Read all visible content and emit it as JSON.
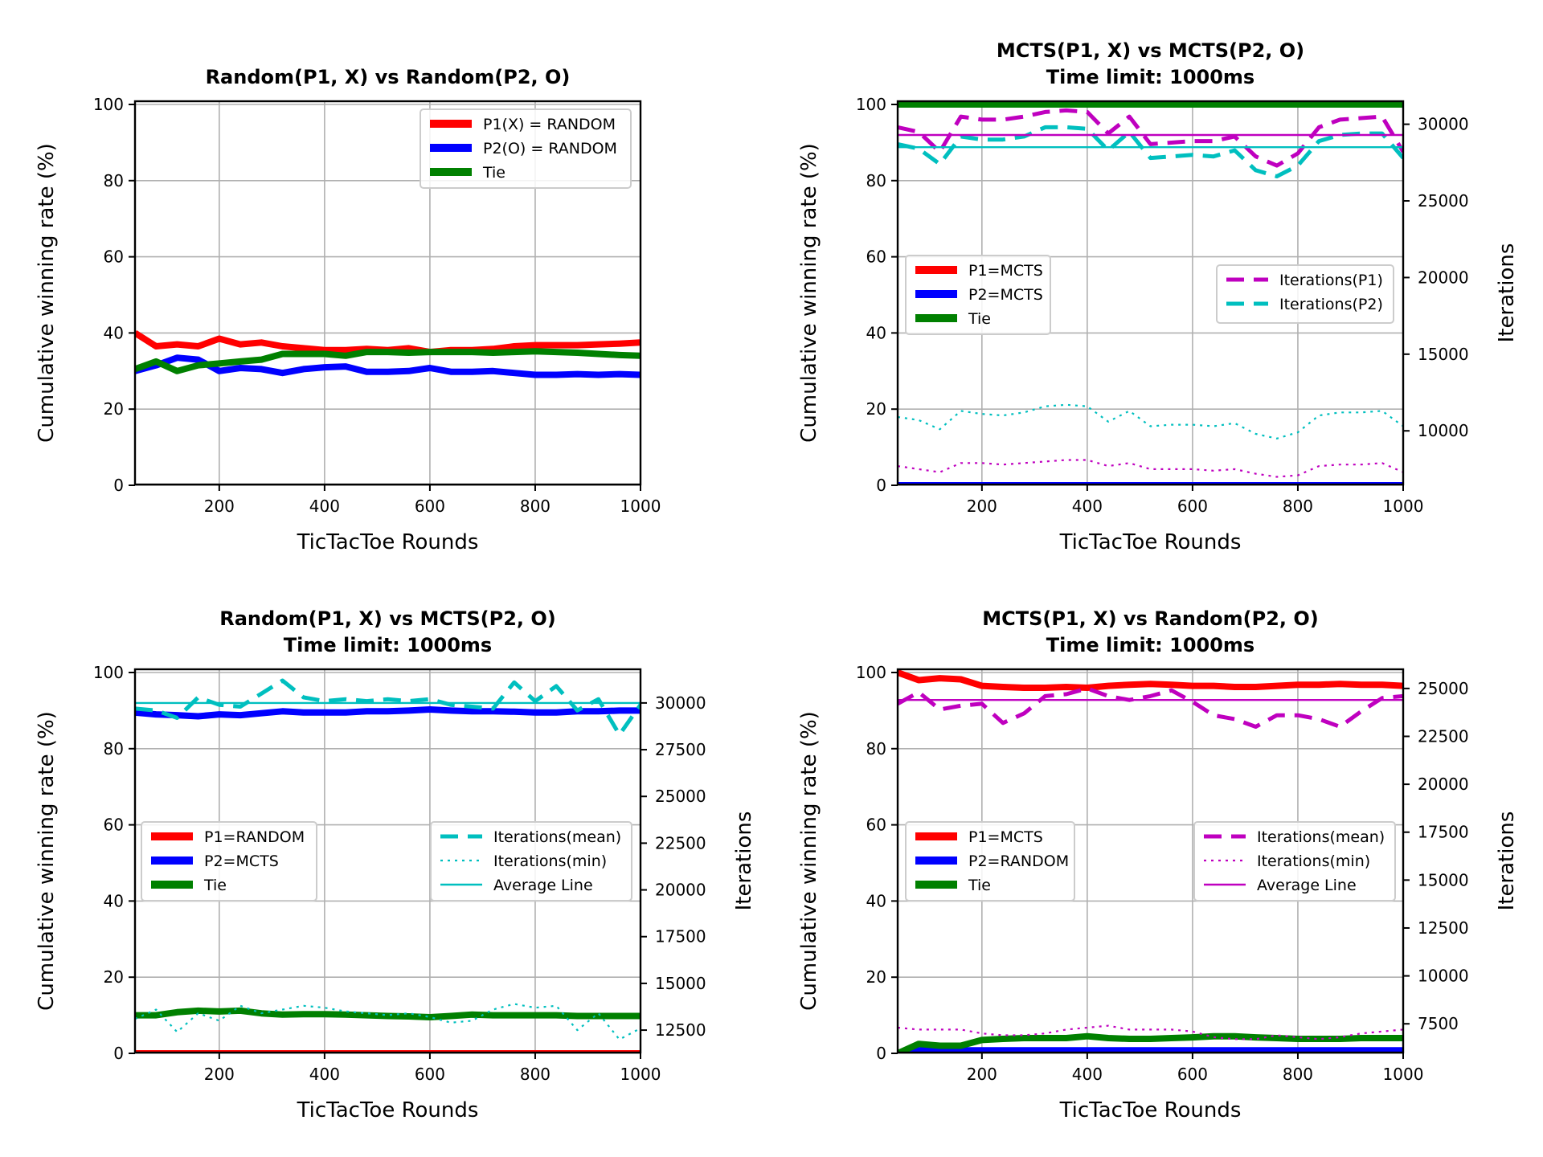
{
  "chart_data": [
    {
      "type": "line",
      "title": [
        "Random(P1, X) vs Random(P2, O)"
      ],
      "xlabel": "TicTacToe Rounds",
      "ylabel": "Cumulative winning rate (%)",
      "xlim": [
        40,
        1000
      ],
      "ylim": [
        0,
        100
      ],
      "xticks": [
        200,
        400,
        600,
        800,
        1000
      ],
      "yticks": [
        0,
        20,
        40,
        60,
        80,
        100
      ],
      "x": [
        40,
        80,
        120,
        160,
        200,
        240,
        280,
        320,
        360,
        400,
        440,
        480,
        520,
        560,
        600,
        640,
        680,
        720,
        760,
        800,
        840,
        880,
        920,
        960,
        1000
      ],
      "series": [
        {
          "name": "P1(X) = RANDOM",
          "color": "#ff0000",
          "values": [
            40.0,
            36.5,
            37.0,
            36.5,
            38.5,
            37.0,
            37.5,
            36.5,
            36.0,
            35.5,
            35.5,
            35.8,
            35.5,
            36.0,
            35.0,
            35.5,
            35.5,
            35.8,
            36.5,
            36.8,
            36.8,
            36.8,
            37.0,
            37.2,
            37.5
          ]
        },
        {
          "name": "P2(O) = RANDOM",
          "color": "#0000ff",
          "values": [
            30.0,
            31.5,
            33.5,
            33.0,
            30.0,
            30.8,
            30.5,
            29.5,
            30.5,
            31.0,
            31.2,
            29.8,
            29.8,
            30.0,
            30.8,
            29.8,
            29.8,
            30.0,
            29.5,
            29.0,
            29.0,
            29.2,
            29.0,
            29.2,
            29.0
          ]
        },
        {
          "name": "Tie",
          "color": "#008000",
          "values": [
            30.5,
            32.5,
            30.0,
            31.5,
            32.0,
            32.5,
            33.0,
            34.5,
            34.5,
            34.5,
            34.0,
            35.0,
            35.0,
            34.8,
            35.0,
            35.0,
            35.0,
            34.8,
            35.0,
            35.2,
            35.0,
            34.8,
            34.5,
            34.2,
            34.0
          ]
        }
      ],
      "legend": {
        "position": "upper-right",
        "entries": [
          "P1(X) = RANDOM",
          "P2(O) = RANDOM",
          "Tie"
        ]
      }
    },
    {
      "type": "line",
      "title": [
        "MCTS(P1, X) vs MCTS(P2, O)",
        "Time limit: 1000ms"
      ],
      "xlabel": "TicTacToe Rounds",
      "ylabel": "Cumulative winning rate (%)",
      "y2label": "Iterations",
      "xlim": [
        40,
        1000
      ],
      "ylim": [
        0,
        100
      ],
      "y2lim": [
        6500,
        31500
      ],
      "xticks": [
        200,
        400,
        600,
        800,
        1000
      ],
      "yticks": [
        0,
        20,
        40,
        60,
        80,
        100
      ],
      "y2ticks": [
        10000,
        15000,
        20000,
        25000,
        30000
      ],
      "x": [
        40,
        80,
        120,
        160,
        200,
        240,
        280,
        320,
        360,
        400,
        440,
        480,
        520,
        560,
        600,
        640,
        680,
        720,
        760,
        800,
        840,
        880,
        920,
        960,
        1000
      ],
      "series": [
        {
          "name": "P1=MCTS",
          "color": "#ff0000",
          "values": [
            0,
            0,
            0,
            0,
            0,
            0,
            0,
            0,
            0,
            0,
            0,
            0,
            0,
            0,
            0,
            0,
            0,
            0,
            0,
            0,
            0,
            0,
            0,
            0,
            0
          ]
        },
        {
          "name": "P2=MCTS",
          "color": "#0000ff",
          "values": [
            0,
            0,
            0,
            0,
            0,
            0,
            0,
            0,
            0,
            0,
            0,
            0,
            0,
            0,
            0,
            0,
            0,
            0,
            0,
            0,
            0,
            0,
            0,
            0,
            0
          ]
        },
        {
          "name": "Tie",
          "color": "#008000",
          "values": [
            100,
            100,
            100,
            100,
            100,
            100,
            100,
            100,
            100,
            100,
            100,
            100,
            100,
            100,
            100,
            100,
            100,
            100,
            100,
            100,
            100,
            100,
            100,
            100,
            100
          ]
        }
      ],
      "secondary_series": [
        {
          "name": "Iterations(P1)",
          "color": "#bf00bf",
          "style": "dashed",
          "values": [
            29800,
            29500,
            28200,
            30500,
            30300,
            30300,
            30500,
            30800,
            30900,
            30800,
            29400,
            30500,
            28700,
            28800,
            28900,
            28900,
            29200,
            27900,
            27300,
            28100,
            29800,
            30300,
            30400,
            30500,
            28200
          ]
        },
        {
          "name": "Iterations(P2)",
          "color": "#00bfbf",
          "style": "dashed",
          "values": [
            28700,
            28400,
            27400,
            29200,
            29000,
            29000,
            29200,
            29800,
            29800,
            29700,
            28300,
            29500,
            27800,
            27900,
            28000,
            27900,
            28300,
            27000,
            26600,
            27300,
            28900,
            29300,
            29400,
            29400,
            27800
          ]
        },
        {
          "name": "Iterations(P1) average",
          "color": "#bf00bf",
          "style": "solid-thin",
          "values": [
            29300,
            29300,
            29300,
            29300,
            29300,
            29300,
            29300,
            29300,
            29300,
            29300,
            29300,
            29300,
            29300,
            29300,
            29300,
            29300,
            29300,
            29300,
            29300,
            29300,
            29300,
            29300,
            29300,
            29300,
            29300
          ]
        },
        {
          "name": "Iterations(P2) average",
          "color": "#00bfbf",
          "style": "solid-thin",
          "values": [
            28500,
            28500,
            28500,
            28500,
            28500,
            28500,
            28500,
            28500,
            28500,
            28500,
            28500,
            28500,
            28500,
            28500,
            28500,
            28500,
            28500,
            28500,
            28500,
            28500,
            28500,
            28500,
            28500,
            28500,
            28500
          ]
        },
        {
          "name": "Iterations(P2) min",
          "color": "#00bfbf",
          "style": "dotted",
          "values": [
            10900,
            10700,
            10100,
            11300,
            11100,
            11000,
            11200,
            11600,
            11700,
            11600,
            10600,
            11300,
            10300,
            10400,
            10400,
            10300,
            10500,
            9800,
            9500,
            9900,
            11000,
            11200,
            11200,
            11300,
            10300
          ]
        },
        {
          "name": "Iterations(P1) min",
          "color": "#bf00bf",
          "style": "dotted",
          "values": [
            7700,
            7500,
            7300,
            7900,
            7900,
            7800,
            7900,
            8000,
            8100,
            8100,
            7700,
            7900,
            7500,
            7500,
            7500,
            7400,
            7500,
            7200,
            7000,
            7100,
            7700,
            7800,
            7800,
            7900,
            7300
          ]
        }
      ],
      "legend": {
        "position": "center-left",
        "entries": [
          "P1=MCTS",
          "P2=MCTS",
          "Tie"
        ]
      },
      "legend2": {
        "position": "center-right",
        "entries": [
          "Iterations(P1)",
          "Iterations(P2)"
        ]
      }
    },
    {
      "type": "line",
      "title": [
        "Random(P1, X) vs MCTS(P2, O)",
        "Time limit: 1000ms"
      ],
      "xlabel": "TicTacToe Rounds",
      "ylabel": "Cumulative winning rate (%)",
      "y2label": "Iterations",
      "xlim": [
        40,
        1000
      ],
      "ylim": [
        0,
        100
      ],
      "y2lim": [
        11300,
        31800
      ],
      "xticks": [
        200,
        400,
        600,
        800,
        1000
      ],
      "yticks": [
        0,
        20,
        40,
        60,
        80,
        100
      ],
      "y2ticks": [
        12500,
        15000,
        17500,
        20000,
        22500,
        25000,
        27500,
        30000
      ],
      "x": [
        40,
        80,
        120,
        160,
        200,
        240,
        280,
        320,
        360,
        400,
        440,
        480,
        520,
        560,
        600,
        640,
        680,
        720,
        760,
        800,
        840,
        880,
        920,
        960,
        1000
      ],
      "series": [
        {
          "name": "P1=RANDOM",
          "color": "#ff0000",
          "values": [
            0,
            0,
            0,
            0,
            0,
            0,
            0,
            0,
            0,
            0,
            0,
            0,
            0,
            0,
            0,
            0,
            0,
            0,
            0,
            0,
            0,
            0,
            0,
            0,
            0
          ]
        },
        {
          "name": "P2=MCTS",
          "color": "#0000ff",
          "values": [
            89.5,
            89.0,
            88.8,
            88.5,
            89.0,
            88.8,
            89.3,
            89.8,
            89.5,
            89.5,
            89.5,
            89.8,
            89.8,
            90.0,
            90.3,
            90.0,
            89.8,
            89.8,
            89.7,
            89.5,
            89.5,
            89.8,
            89.8,
            90.0,
            90.0
          ]
        },
        {
          "name": "Tie",
          "color": "#008000",
          "values": [
            10.0,
            10.0,
            10.8,
            11.2,
            11.0,
            11.2,
            10.5,
            10.2,
            10.3,
            10.3,
            10.2,
            10.0,
            9.8,
            9.7,
            9.5,
            9.8,
            10.2,
            10.0,
            10.0,
            10.0,
            10.0,
            9.8,
            9.8,
            9.8,
            9.8
          ]
        }
      ],
      "secondary_series": [
        {
          "name": "Iterations(mean)",
          "color": "#00bfbf",
          "style": "dashed",
          "values": [
            29700,
            29600,
            29200,
            30300,
            29900,
            29800,
            30500,
            31200,
            30300,
            30100,
            30200,
            30100,
            30200,
            30100,
            30200,
            29900,
            29800,
            29700,
            31100,
            30100,
            30900,
            29600,
            30200,
            28300,
            29900
          ]
        },
        {
          "name": "Iterations(min)",
          "color": "#00bfbf",
          "style": "dotted",
          "values": [
            13100,
            13600,
            12400,
            13400,
            13000,
            13800,
            13400,
            13600,
            13800,
            13700,
            13500,
            13400,
            13300,
            13400,
            13200,
            12900,
            13000,
            13600,
            13900,
            13700,
            13800,
            12500,
            13400,
            12000,
            12600
          ]
        },
        {
          "name": "Average Line",
          "color": "#00bfbf",
          "style": "solid-thin",
          "values": [
            30000,
            30000,
            30000,
            30000,
            30000,
            30000,
            30000,
            30000,
            30000,
            30000,
            30000,
            30000,
            30000,
            30000,
            30000,
            30000,
            30000,
            30000,
            30000,
            30000,
            30000,
            30000,
            30000,
            30000,
            30000
          ]
        }
      ],
      "legend": {
        "position": "center-left",
        "entries": [
          "P1=RANDOM",
          "P2=MCTS",
          "Tie"
        ]
      },
      "legend2": {
        "position": "center-right",
        "entries": [
          "Iterations(mean)",
          "Iterations(min)",
          "Average Line"
        ]
      }
    },
    {
      "type": "line",
      "title": [
        "MCTS(P1, X) vs Random(P2, O)",
        "Time limit: 1000ms"
      ],
      "xlabel": "TicTacToe Rounds",
      "ylabel": "Cumulative winning rate (%)",
      "y2label": "Iterations",
      "xlim": [
        40,
        1000
      ],
      "ylim": [
        0,
        100
      ],
      "y2lim": [
        6000,
        26000
      ],
      "xticks": [
        200,
        400,
        600,
        800,
        1000
      ],
      "yticks": [
        0,
        20,
        40,
        60,
        80,
        100
      ],
      "y2ticks": [
        7500,
        10000,
        12500,
        15000,
        17500,
        20000,
        22500,
        25000
      ],
      "x": [
        40,
        80,
        120,
        160,
        200,
        240,
        280,
        320,
        360,
        400,
        440,
        480,
        520,
        560,
        600,
        640,
        680,
        720,
        760,
        800,
        840,
        880,
        920,
        960,
        1000
      ],
      "series": [
        {
          "name": "P1=MCTS",
          "color": "#ff0000",
          "values": [
            100,
            98.0,
            98.5,
            98.2,
            96.5,
            96.2,
            96.0,
            96.0,
            96.2,
            96.0,
            96.5,
            96.8,
            97.0,
            96.8,
            96.5,
            96.5,
            96.2,
            96.2,
            96.5,
            96.8,
            96.8,
            97.0,
            96.8,
            96.8,
            96.5
          ]
        },
        {
          "name": "P2=RANDOM",
          "color": "#0000ff",
          "values": [
            0,
            0.8,
            0.8,
            0.8,
            0.8,
            0.8,
            0.8,
            0.8,
            0.8,
            0.8,
            0.8,
            0.8,
            0.8,
            0.8,
            0.8,
            0.8,
            0.8,
            0.8,
            0.8,
            0.8,
            0.8,
            0.8,
            0.8,
            0.8,
            0.8
          ]
        },
        {
          "name": "Tie",
          "color": "#008000",
          "values": [
            0,
            2.5,
            2.0,
            2.0,
            3.5,
            3.8,
            4.0,
            4.0,
            4.0,
            4.5,
            4.0,
            3.8,
            3.8,
            4.0,
            4.2,
            4.5,
            4.5,
            4.2,
            4.0,
            3.8,
            3.8,
            3.8,
            4.0,
            4.0,
            4.0
          ]
        }
      ],
      "secondary_series": [
        {
          "name": "Iterations(mean)",
          "color": "#bf00bf",
          "style": "dashed",
          "values": [
            24200,
            24800,
            23900,
            24100,
            24200,
            23200,
            23700,
            24600,
            24700,
            25000,
            24600,
            24400,
            24600,
            24900,
            24300,
            23600,
            23400,
            23000,
            23600,
            23600,
            23400,
            23000,
            23800,
            24500,
            24600
          ]
        },
        {
          "name": "Iterations(min)",
          "color": "#bf00bf",
          "style": "dotted",
          "values": [
            7300,
            7200,
            7200,
            7200,
            7000,
            6900,
            6900,
            7000,
            7200,
            7300,
            7400,
            7200,
            7200,
            7200,
            7100,
            6800,
            6700,
            6700,
            6900,
            6800,
            6700,
            6800,
            7000,
            7100,
            7200
          ]
        },
        {
          "name": "Average Line",
          "color": "#bf00bf",
          "style": "solid-thin",
          "values": [
            24400,
            24400,
            24400,
            24400,
            24400,
            24400,
            24400,
            24400,
            24400,
            24400,
            24400,
            24400,
            24400,
            24400,
            24400,
            24400,
            24400,
            24400,
            24400,
            24400,
            24400,
            24400,
            24400,
            24400,
            24400
          ]
        }
      ],
      "legend": {
        "position": "center-left",
        "entries": [
          "P1=MCTS",
          "P2=RANDOM",
          "Tie"
        ]
      },
      "legend2": {
        "position": "center-right",
        "entries": [
          "Iterations(mean)",
          "Iterations(min)",
          "Average Line"
        ]
      }
    }
  ]
}
